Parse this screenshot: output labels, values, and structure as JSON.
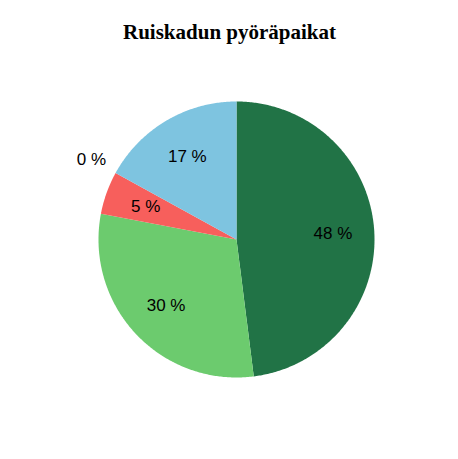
{
  "chart_data": {
    "type": "pie",
    "title": "Ruiskadun pyöräpaikat",
    "values": [
      48,
      30,
      5,
      0,
      17
    ],
    "value_labels": [
      "48 %",
      "30 %",
      "5 %",
      "0 %",
      "17 %"
    ],
    "colors": [
      "#217346",
      "#6ccb6e",
      "#f75f5c",
      "#f0a030",
      "#7ec4e0"
    ],
    "data_labels": true
  }
}
